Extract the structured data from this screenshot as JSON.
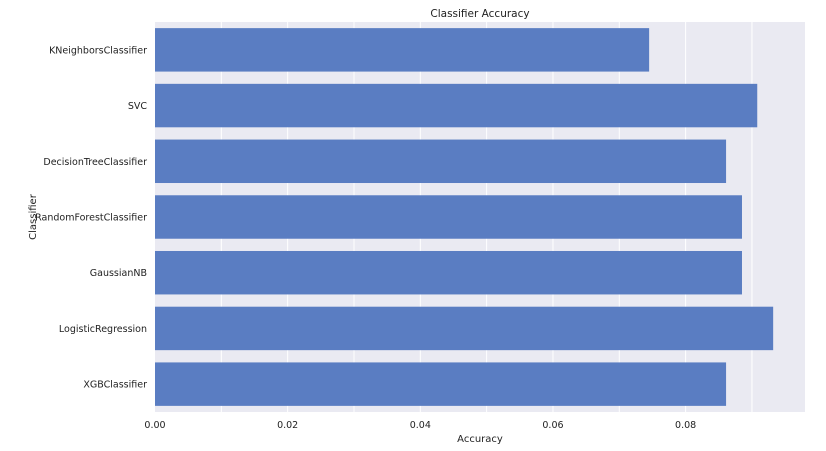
{
  "chart_data": {
    "type": "bar",
    "orientation": "horizontal",
    "title": "Classifier Accuracy",
    "xlabel": "Accuracy",
    "ylabel": "Classifier",
    "categories": [
      "KNeighborsClassifier",
      "SVC",
      "DecisionTreeClassifier",
      "RandomForestClassifier",
      "GaussianNB",
      "LogisticRegression",
      "XGBClassifier"
    ],
    "values": [
      0.0745,
      0.0908,
      0.0861,
      0.0885,
      0.0885,
      0.0932,
      0.0861
    ],
    "xlim": [
      0,
      0.098
    ],
    "xticks": [
      0.0,
      0.02,
      0.04,
      0.06,
      0.08
    ],
    "xtick_labels": [
      "0.00",
      "0.02",
      "0.04",
      "0.06",
      "0.08"
    ],
    "grid": true,
    "colors": {
      "bar": "#5a7dc2",
      "plot_background": "#eaeaf2",
      "grid": "#ffffff"
    }
  }
}
